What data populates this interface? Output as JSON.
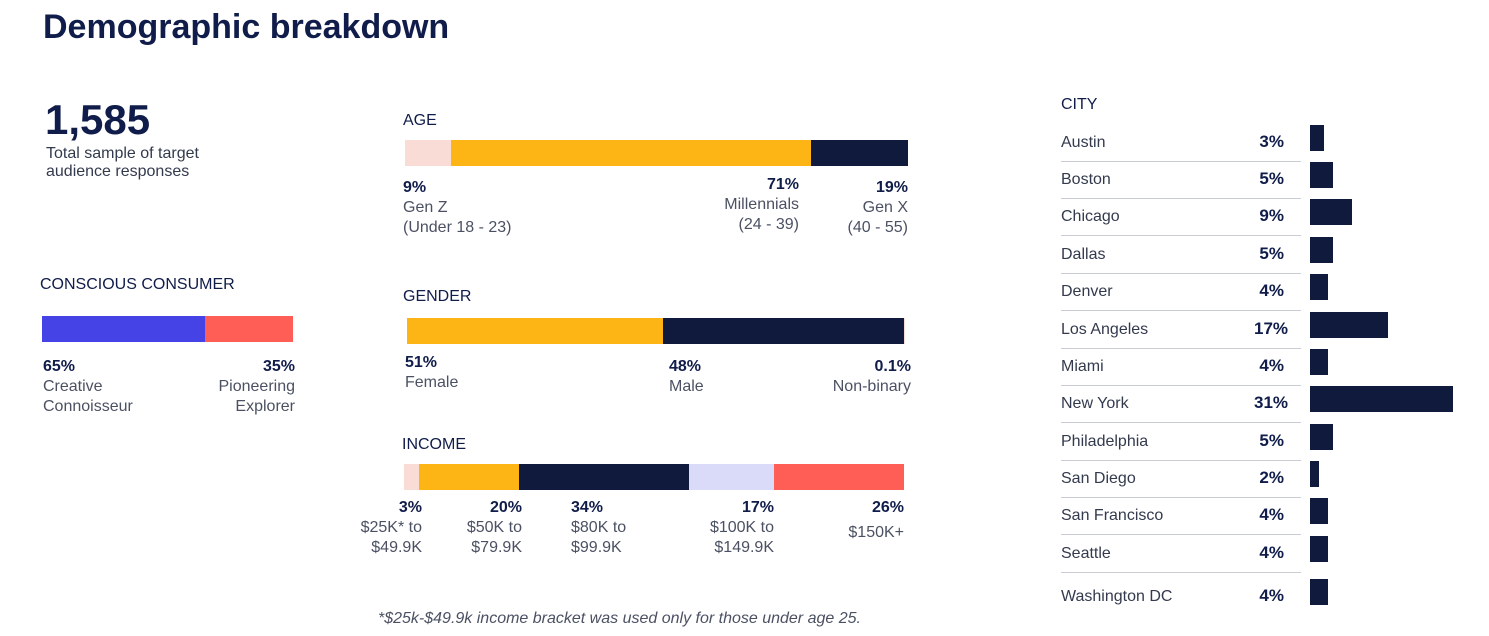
{
  "title": "Demographic breakdown",
  "total": {
    "value": "1,585",
    "caption": "Total sample of target audience responses"
  },
  "colors": {
    "navy": "#0f1a3c",
    "gold": "#fdb515",
    "pink": "#f9dcd6",
    "blue": "#4543e6",
    "coral": "#ff5e56",
    "lavender": "#d9dbf8"
  },
  "chart_data": [
    {
      "type": "bar",
      "title": "CONSCIOUS CONSUMER",
      "stacked": true,
      "categories": [
        "Creative Connoisseur",
        "Pioneering Explorer"
      ],
      "values": [
        65,
        35
      ],
      "labels": [
        {
          "pct": "65%",
          "l1": "Creative",
          "l2": "Connoisseur"
        },
        {
          "pct": "35%",
          "l1": "Pioneering",
          "l2": "Explorer"
        }
      ]
    },
    {
      "type": "bar",
      "title": "AGE",
      "stacked": true,
      "categories": [
        "Gen Z",
        "Millennials",
        "Gen X"
      ],
      "values": [
        9,
        71,
        19
      ],
      "labels": [
        {
          "pct": "9%",
          "l1": "Gen Z",
          "l2": "(Under 18 - 23)"
        },
        {
          "pct": "71%",
          "l1": "Millennials",
          "l2": "(24 - 39)"
        },
        {
          "pct": "19%",
          "l1": "Gen X",
          "l2": "(40 - 55)"
        }
      ]
    },
    {
      "type": "bar",
      "title": "GENDER",
      "stacked": true,
      "categories": [
        "Female",
        "Male",
        "Non-binary"
      ],
      "values": [
        51,
        48,
        0.1
      ],
      "labels": [
        {
          "pct": "51%",
          "l1": "Female"
        },
        {
          "pct": "48%",
          "l1": "Male"
        },
        {
          "pct": "0.1%",
          "l1": "Non-binary"
        }
      ]
    },
    {
      "type": "bar",
      "title": "INCOME",
      "stacked": true,
      "categories": [
        "$25K* to $49.9K",
        "$50K to $79.9K",
        "$80K to $99.9K",
        "$100K to $149.9K",
        "$150K+"
      ],
      "values": [
        3,
        20,
        34,
        17,
        26
      ],
      "labels": [
        {
          "pct": "3%",
          "l1": "$25K* to",
          "l2": "$49.9K"
        },
        {
          "pct": "20%",
          "l1": "$50K to",
          "l2": "$79.9K"
        },
        {
          "pct": "34%",
          "l1": "$80K to",
          "l2": "$99.9K"
        },
        {
          "pct": "17%",
          "l1": "$100K to",
          "l2": "$149.9K"
        },
        {
          "pct": "26%",
          "l1": "$150K+"
        }
      ]
    },
    {
      "type": "bar",
      "title": "CITY",
      "orientation": "horizontal",
      "categories": [
        "Austin",
        "Boston",
        "Chicago",
        "Dallas",
        "Denver",
        "Los Angeles",
        "Miami",
        "New York",
        "Philadelphia",
        "San Diego",
        "San Francisco",
        "Seattle",
        "Washington DC"
      ],
      "values": [
        3,
        5,
        9,
        5,
        4,
        17,
        4,
        31,
        5,
        2,
        4,
        4,
        4
      ],
      "pct_labels": [
        "3%",
        "5%",
        "9%",
        "5%",
        "4%",
        "17%",
        "4%",
        "31%",
        "5%",
        "2%",
        "4%",
        "4%",
        "4%"
      ]
    }
  ],
  "footnote": "*$25k-$49.9k income bracket was used only for those under age 25."
}
